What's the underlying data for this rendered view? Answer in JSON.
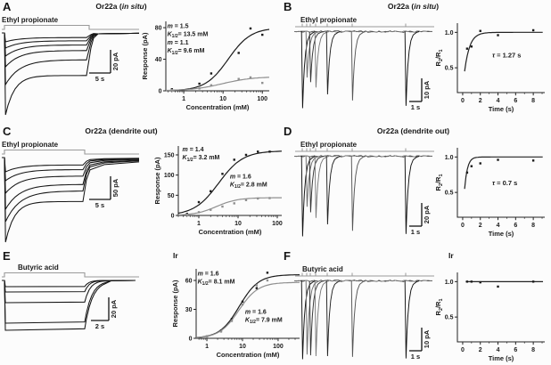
{
  "colors": {
    "black": "#1a1a1a",
    "gray": "#8f8f8f",
    "stimulus": "#9a9a9a"
  },
  "panels": [
    {
      "letter": "A",
      "title": {
        "pre": "Or22a (",
        "italic": "in situ",
        "post": ")"
      },
      "plot_kind": "dose",
      "trace": {
        "label": "Ethyl propionate",
        "kind": "desens",
        "label_x": 2,
        "stim_end": 100,
        "amps": [
          10,
          17,
          26,
          38,
          58,
          92
        ],
        "scale": {
          "x": 124,
          "y": 40,
          "vh": 26,
          "hw": 24,
          "v": "20 pA",
          "h": "5 s"
        }
      }
    },
    {
      "letter": "B",
      "title": {
        "pre": "Or22a (",
        "italic": "in situ",
        "post": ")"
      },
      "plot_kind": "recovery",
      "trace": {
        "label": "Ethyl propionate",
        "kind": "pulses",
        "label_x": 10,
        "depth": 86,
        "pulses": [
          [
            12,
            1
          ],
          [
            17,
            0.6
          ],
          [
            21,
            0.66
          ],
          [
            27,
            0.73
          ],
          [
            40,
            0.82
          ],
          [
            68,
            0.9
          ],
          [
            128,
            0.97
          ]
        ],
        "scale": {
          "x": 146,
          "y": 72,
          "vh": 26,
          "hw": 14,
          "v": "10 pA",
          "h": "1 s"
        }
      }
    },
    {
      "letter": "C",
      "title": {
        "pre": "Or22a (dendrite out)",
        "italic": "",
        "post": ""
      },
      "plot_kind": "dose",
      "trace": {
        "label": "Ethyl propionate",
        "kind": "desens2",
        "label_x": 2,
        "stim_end": 95,
        "amps": [
          16,
          26,
          40,
          58,
          72,
          95
        ],
        "scale": {
          "x": 124,
          "y": 42,
          "vh": 26,
          "hw": 24,
          "v": "50 pA",
          "h": "5 s"
        }
      }
    },
    {
      "letter": "D",
      "title": {
        "pre": "Or22a (dendrite out)",
        "italic": "",
        "post": ""
      },
      "plot_kind": "recovery",
      "trace": {
        "label": "Ethyl propionate",
        "kind": "pulses",
        "label_x": 10,
        "depth": 90,
        "pulses": [
          [
            12,
            1
          ],
          [
            17,
            0.63
          ],
          [
            21,
            0.7
          ],
          [
            27,
            0.77
          ],
          [
            40,
            0.85
          ],
          [
            68,
            0.93
          ],
          [
            128,
            0.97
          ]
        ],
        "scale": {
          "x": 146,
          "y": 72,
          "vh": 26,
          "hw": 14,
          "v": "20 pA",
          "h": "1 s"
        }
      }
    },
    {
      "letter": "E",
      "title": {
        "pre": "Ir",
        "italic": "",
        "post": ""
      },
      "plot_kind": "dose",
      "trace": {
        "label": "Butyric acid",
        "kind": "square",
        "label_x": 20,
        "stim_end": 95,
        "amps": [
          7,
          13,
          25,
          48,
          56
        ],
        "scale": {
          "x": 122,
          "y": 40,
          "vh": 26,
          "hw": 20,
          "v": "20 pA",
          "h": "2 s"
        }
      }
    },
    {
      "letter": "F",
      "title": {
        "pre": "Ir",
        "italic": "",
        "post": ""
      },
      "plot_kind": "recovery",
      "trace": {
        "label": "Butyric acid",
        "kind": "pulses",
        "label_x": 12,
        "depth": 88,
        "pulses": [
          [
            12,
            1
          ],
          [
            17,
            0.94
          ],
          [
            21,
            0.95
          ],
          [
            27,
            0.96
          ],
          [
            40,
            0.96
          ],
          [
            68,
            0.97
          ],
          [
            128,
            0.99
          ]
        ],
        "scale": {
          "x": 146,
          "y": 72,
          "vh": 26,
          "hw": 14,
          "v": "10 pA",
          "h": "1 s"
        }
      }
    }
  ],
  "chart_data": [
    {
      "panel": "A",
      "type": "scatter",
      "title": "Or22a (in situ)",
      "xlabel": "Concentration (mM)",
      "ylabel": "Response (pA)",
      "xscale": "log",
      "xticks": [
        1,
        10,
        100
      ],
      "yticks": [
        0,
        40,
        80
      ],
      "xrange": [
        0.35,
        150
      ],
      "ymax": 88,
      "series": [
        {
          "name": "in situ (black fit)",
          "color": "#1a1a1a",
          "fit": {
            "m": 1.5,
            "k1_2_mM": 13.5,
            "max_pA": 80
          },
          "points": [
            [
              0.5,
              2
            ],
            [
              2.5,
              9
            ],
            [
              5,
              22
            ],
            [
              25,
              48
            ],
            [
              50,
              79
            ],
            [
              100,
              71
            ]
          ]
        },
        {
          "name": "in situ (gray fit)",
          "color": "#8f8f8f",
          "fit": {
            "m": 1.1,
            "k1_2_mM": 9.6,
            "max_pA": 18
          },
          "points": [
            [
              0.5,
              1
            ],
            [
              2.5,
              3
            ],
            [
              5,
              7
            ],
            [
              25,
              15
            ],
            [
              50,
              17
            ],
            [
              100,
              10
            ]
          ]
        }
      ],
      "annotations": [
        {
          "x": 0.2,
          "y": 0.15,
          "color": "#1a1a1a",
          "lines": [
            "m = 1.5",
            "K1/2= 13.5 mM"
          ]
        },
        {
          "x": 0.2,
          "y": 0.31,
          "color": "#8f8f8f",
          "lines": [
            "m = 1.1",
            "K1/2= 9.6 mM"
          ]
        }
      ]
    },
    {
      "panel": "B",
      "type": "scatter",
      "title": "Or22a (in situ)",
      "xlabel": "Time (s)",
      "ylabel": "R2/R1",
      "xticks": [
        0,
        2,
        4,
        6,
        8
      ],
      "yticks": [
        0.5,
        1.0
      ],
      "ytick_labels": [
        "0.5",
        "1.0"
      ],
      "tau_s": 1.27,
      "tau_label": "τ = 1.27 s",
      "r0": 0.45,
      "points": [
        [
          0.5,
          0.77
        ],
        [
          1,
          0.8
        ],
        [
          2,
          1.02
        ],
        [
          4,
          0.96
        ],
        [
          8,
          1.03
        ]
      ],
      "ann": {
        "x": 0.5,
        "y": 0.42
      }
    },
    {
      "panel": "C",
      "type": "scatter",
      "title": "Or22a (dendrite out)",
      "xlabel": "Concentration (mM)",
      "ylabel": "Response (pA)",
      "xscale": "log",
      "xticks": [
        1,
        10,
        100
      ],
      "yticks": [
        0,
        50,
        100,
        150
      ],
      "xrange": [
        0.3,
        130
      ],
      "ymax": 172,
      "series": [
        {
          "name": "dendrite out (black fit)",
          "color": "#1a1a1a",
          "fit": {
            "m": 1.4,
            "k1_2_mM": 3.2,
            "max_pA": 160
          },
          "points": [
            [
              0.5,
              4
            ],
            [
              1,
              33
            ],
            [
              2,
              60
            ],
            [
              4,
              103
            ],
            [
              8,
              138
            ],
            [
              16,
              150
            ],
            [
              32,
              158
            ],
            [
              64,
              158
            ]
          ]
        },
        {
          "name": "dendrite out (gray fit)",
          "color": "#8f8f8f",
          "fit": {
            "m": 1.6,
            "k1_2_mM": 2.8,
            "max_pA": 44
          },
          "points": [
            [
              0.5,
              2
            ],
            [
              1,
              8
            ],
            [
              2,
              14
            ],
            [
              4,
              22
            ],
            [
              8,
              30
            ],
            [
              16,
              38
            ],
            [
              32,
              42
            ],
            [
              64,
              43
            ]
          ]
        }
      ],
      "annotations": [
        {
          "x": 0.22,
          "y": 0.14,
          "color": "#1a1a1a",
          "lines": [
            "m = 1.4",
            "K1/2= 3.2 mM"
          ]
        },
        {
          "x": 0.58,
          "y": 0.4,
          "color": "#8f8f8f",
          "lines": [
            "m = 1.6",
            "K1/2= 2.8 mM"
          ]
        }
      ]
    },
    {
      "panel": "D",
      "type": "scatter",
      "title": "Or22a (dendrite out)",
      "xlabel": "Time (s)",
      "ylabel": "R2/R1",
      "xticks": [
        0,
        2,
        4,
        6,
        8
      ],
      "yticks": [
        0.5,
        1.0
      ],
      "ytick_labels": [
        "0.5",
        "1.0"
      ],
      "tau_s": 0.7,
      "tau_label": "τ = 0.7 s",
      "r0": 0.55,
      "points": [
        [
          0.5,
          0.78
        ],
        [
          1,
          0.87
        ],
        [
          2,
          0.91
        ],
        [
          4,
          0.96
        ],
        [
          8,
          0.95
        ]
      ],
      "ann": {
        "x": 0.5,
        "y": 0.45
      }
    },
    {
      "panel": "E",
      "type": "scatter",
      "title": "Ir",
      "xlabel": "Concentration (mM)",
      "ylabel": "Response (pA)",
      "xscale": "log",
      "xticks": [
        1,
        10,
        100
      ],
      "yticks": [
        0,
        30,
        60
      ],
      "xrange": [
        0.5,
        400
      ],
      "ymax": 72,
      "series": [
        {
          "name": "Ir (black fit)",
          "color": "#1a1a1a",
          "fit": {
            "m": 1.6,
            "k1_2_mM": 8.1,
            "max_pA": 66
          },
          "points": [
            [
              1,
              2
            ],
            [
              2.5,
              8
            ],
            [
              5,
              20
            ],
            [
              10,
              38
            ],
            [
              25,
              52
            ],
            [
              50,
              68
            ]
          ]
        },
        {
          "name": "Ir (gray fit)",
          "color": "#8f8f8f",
          "fit": {
            "m": 1.6,
            "k1_2_mM": 7.9,
            "max_pA": 58
          },
          "points": [
            [
              1,
              2
            ],
            [
              2.5,
              7
            ],
            [
              5,
              18
            ],
            [
              10,
              35
            ],
            [
              25,
              55
            ],
            [
              50,
              60
            ]
          ]
        }
      ],
      "annotations": [
        {
          "x": 0.2,
          "y": 0.15,
          "color": "#1a1a1a",
          "lines": [
            "m = 1.6",
            "K1/2= 8.1 mM"
          ]
        },
        {
          "x": 0.56,
          "y": 0.52,
          "color": "#8f8f8f",
          "lines": [
            "m = 1.6",
            "K1/2= 7.9 mM"
          ]
        }
      ]
    },
    {
      "panel": "F",
      "type": "scatter",
      "title": "Ir",
      "xlabel": "Time (s)",
      "ylabel": "R2/R1",
      "xticks": [
        0,
        2,
        4,
        6,
        8
      ],
      "yticks": [
        0.5,
        1.0
      ],
      "ytick_labels": [
        "0.5",
        "1.0"
      ],
      "flat": true,
      "points": [
        [
          0.5,
          1.0
        ],
        [
          1,
          1.0
        ],
        [
          2,
          0.99
        ],
        [
          4,
          0.93
        ],
        [
          8,
          1.0
        ]
      ]
    }
  ]
}
